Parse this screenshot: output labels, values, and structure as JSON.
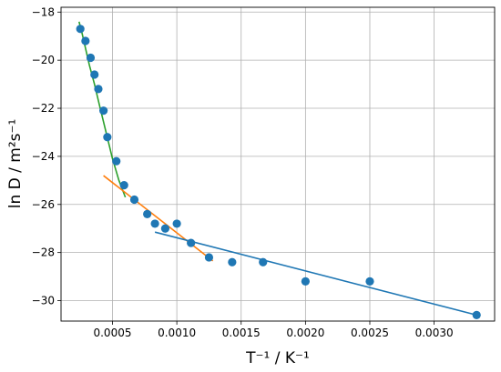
{
  "chart_data": {
    "type": "scatter",
    "xlabel": "T⁻¹ / K⁻¹",
    "ylabel": "ln D / m²s⁻¹",
    "xlim": [
      0.0001,
      0.00347
    ],
    "ylim": [
      -30.85,
      -17.8
    ],
    "grid": true,
    "x_ticks": [
      0.0005,
      0.001,
      0.0015,
      0.002,
      0.0025,
      0.003
    ],
    "x_tick_labels": [
      "0.0005",
      "0.0010",
      "0.0015",
      "0.0020",
      "0.0025",
      "0.0030"
    ],
    "y_ticks": [
      -18,
      -20,
      -22,
      -24,
      -26,
      -28,
      -30
    ],
    "y_tick_labels": [
      "−18",
      "−20",
      "−22",
      "−24",
      "−26",
      "−28",
      "−30"
    ],
    "points": {
      "color": "#1f77b4",
      "x": [
        0.00025,
        0.00029,
        0.00033,
        0.00036,
        0.00039,
        0.00043,
        0.00046,
        0.00053,
        0.00059,
        0.00067,
        0.00077,
        0.00083,
        0.00091,
        0.001,
        0.00111,
        0.00125,
        0.00143,
        0.00167,
        0.002,
        0.0025,
        0.00333
      ],
      "y": [
        -18.7,
        -19.2,
        -19.9,
        -20.6,
        -21.2,
        -22.1,
        -23.2,
        -24.2,
        -25.2,
        -25.8,
        -26.4,
        -26.8,
        -27.0,
        -26.8,
        -27.6,
        -28.2,
        -28.4,
        -28.4,
        -29.2,
        -29.2,
        -30.6
      ]
    },
    "fits": [
      {
        "color": "#2ca02c",
        "x": [
          0.00024,
          0.00026,
          0.00029,
          0.00032,
          0.00036,
          0.0004,
          0.00045,
          0.0005,
          0.00055,
          0.0006
        ],
        "y": [
          -18.4,
          -18.8,
          -19.5,
          -20.2,
          -21.0,
          -21.9,
          -23.0,
          -24.1,
          -25.0,
          -25.7
        ]
      },
      {
        "color": "#ff7f0e",
        "x": [
          0.00043,
          0.00128
        ],
        "y": [
          -24.8,
          -28.35
        ]
      },
      {
        "color": "#1f77b4",
        "x": [
          0.00083,
          0.00333
        ],
        "y": [
          -27.15,
          -30.6
        ]
      }
    ]
  }
}
